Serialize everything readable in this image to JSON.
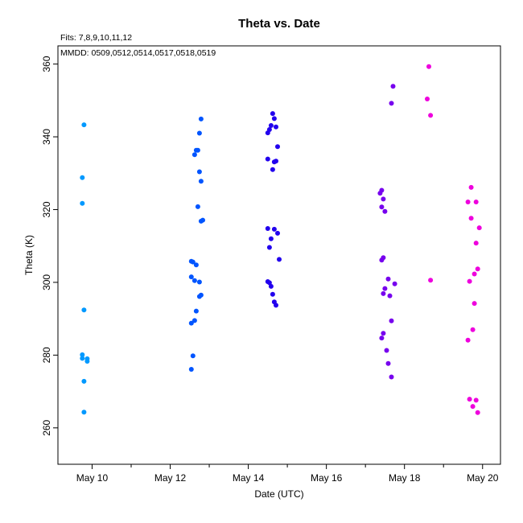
{
  "chart_data": {
    "type": "scatter",
    "title": "Theta  vs. Date",
    "subtitle": "Fits: 7,8,9,10,11,12",
    "annotation": "MMDD: 0509,0512,0514,0517,0518,0519",
    "xlabel": "Date (UTC)",
    "ylabel": "Theta (K)",
    "xlim": [
      "2019-05-09 03:00",
      "2019-05-20 11:00"
    ],
    "ylim": [
      250,
      365
    ],
    "x_ticks": [
      "2019-05-10",
      "2019-05-12",
      "2019-05-14",
      "2019-05-16",
      "2019-05-18",
      "2019-05-20"
    ],
    "x_tick_labels": [
      "May 10",
      "May 12",
      "May 14",
      "May 16",
      "May 18",
      "May 20"
    ],
    "x_minor_ticks": [
      "2019-05-11",
      "2019-05-13",
      "2019-05-15",
      "2019-05-17",
      "2019-05-19"
    ],
    "y_ticks": [
      260,
      280,
      300,
      320,
      340,
      360
    ],
    "grid": false,
    "legend": "none",
    "series": [
      {
        "color": "#0099ff",
        "points": [
          [
            "2019-05-09 19:00",
            343.3
          ],
          [
            "2019-05-09 18:00",
            328.8
          ],
          [
            "2019-05-09 18:00",
            321.7
          ],
          [
            "2019-05-09 19:00",
            292.4
          ],
          [
            "2019-05-09 18:00",
            280.1
          ],
          [
            "2019-05-09 18:00",
            279.1
          ],
          [
            "2019-05-09 21:00",
            279.0
          ],
          [
            "2019-05-09 21:00",
            278.3
          ],
          [
            "2019-05-09 19:00",
            272.8
          ],
          [
            "2019-05-09 19:00",
            264.3
          ]
        ]
      },
      {
        "color": "#0055ff",
        "points": [
          [
            "2019-05-12 19:00",
            344.9
          ],
          [
            "2019-05-12 18:00",
            341.0
          ],
          [
            "2019-05-12 17:00",
            336.3
          ],
          [
            "2019-05-12 16:00",
            336.3
          ],
          [
            "2019-05-12 15:00",
            335.1
          ],
          [
            "2019-05-12 18:00",
            330.4
          ],
          [
            "2019-05-12 19:00",
            327.8
          ],
          [
            "2019-05-12 17:00",
            320.8
          ],
          [
            "2019-05-12 20:00",
            317.1
          ],
          [
            "2019-05-12 19:00",
            316.8
          ],
          [
            "2019-05-12 13:00",
            305.8
          ],
          [
            "2019-05-12 14:00",
            305.6
          ],
          [
            "2019-05-12 16:00",
            304.8
          ],
          [
            "2019-05-12 13:00",
            301.5
          ],
          [
            "2019-05-12 15:00",
            300.5
          ],
          [
            "2019-05-12 18:00",
            300.1
          ],
          [
            "2019-05-12 19:00",
            296.5
          ],
          [
            "2019-05-12 18:00",
            296.1
          ],
          [
            "2019-05-12 16:00",
            292.1
          ],
          [
            "2019-05-12 15:00",
            289.5
          ],
          [
            "2019-05-12 13:00",
            288.8
          ],
          [
            "2019-05-12 14:00",
            279.8
          ],
          [
            "2019-05-12 13:00",
            276.1
          ]
        ]
      },
      {
        "color": "#2200ee",
        "points": [
          [
            "2019-05-14 15:00",
            346.4
          ],
          [
            "2019-05-14 16:00",
            345.0
          ],
          [
            "2019-05-14 14:00",
            343.1
          ],
          [
            "2019-05-14 17:00",
            342.7
          ],
          [
            "2019-05-14 13:00",
            342.0
          ],
          [
            "2019-05-14 12:00",
            341.1
          ],
          [
            "2019-05-14 18:00",
            337.3
          ],
          [
            "2019-05-14 12:00",
            333.9
          ],
          [
            "2019-05-14 17:00",
            333.3
          ],
          [
            "2019-05-14 16:00",
            333.1
          ],
          [
            "2019-05-14 15:00",
            331.0
          ],
          [
            "2019-05-14 12:00",
            314.8
          ],
          [
            "2019-05-14 16:00",
            314.6
          ],
          [
            "2019-05-14 18:00",
            313.5
          ],
          [
            "2019-05-14 14:00",
            312.0
          ],
          [
            "2019-05-14 13:00",
            309.6
          ],
          [
            "2019-05-14 19:00",
            306.3
          ],
          [
            "2019-05-14 12:00",
            300.2
          ],
          [
            "2019-05-14 13:00",
            299.9
          ],
          [
            "2019-05-14 14:00",
            298.9
          ],
          [
            "2019-05-14 15:00",
            296.7
          ],
          [
            "2019-05-14 16:00",
            294.6
          ],
          [
            "2019-05-14 17:00",
            293.7
          ]
        ]
      },
      {
        "color": "#7700ee",
        "points": [
          [
            "2019-05-17 17:00",
            353.9
          ],
          [
            "2019-05-17 16:00",
            349.2
          ],
          [
            "2019-05-17 10:00",
            325.3
          ],
          [
            "2019-05-17 09:00",
            324.5
          ],
          [
            "2019-05-17 11:00",
            322.9
          ],
          [
            "2019-05-17 10:00",
            320.7
          ],
          [
            "2019-05-17 12:00",
            319.5
          ],
          [
            "2019-05-17 11:00",
            306.8
          ],
          [
            "2019-05-17 10:00",
            306.1
          ],
          [
            "2019-05-17 14:00",
            300.9
          ],
          [
            "2019-05-17 18:00",
            299.6
          ],
          [
            "2019-05-17 12:00",
            298.3
          ],
          [
            "2019-05-17 11:00",
            296.9
          ],
          [
            "2019-05-17 15:00",
            296.3
          ],
          [
            "2019-05-17 16:00",
            289.4
          ],
          [
            "2019-05-17 11:00",
            286.0
          ],
          [
            "2019-05-17 10:00",
            284.7
          ],
          [
            "2019-05-17 13:00",
            281.3
          ],
          [
            "2019-05-17 14:00",
            277.7
          ],
          [
            "2019-05-17 16:00",
            274.0
          ]
        ]
      },
      {
        "color": "#ee00dd",
        "points": [
          [
            "2019-05-18 15:00",
            359.3
          ],
          [
            "2019-05-18 14:00",
            350.4
          ],
          [
            "2019-05-18 16:00",
            345.9
          ],
          [
            "2019-05-18 16:00",
            300.6
          ],
          [
            "2019-05-19 17:00",
            326.1
          ],
          [
            "2019-05-19 15:00",
            322.1
          ],
          [
            "2019-05-19 20:00",
            322.1
          ],
          [
            "2019-05-19 17:00",
            317.6
          ],
          [
            "2019-05-19 22:00",
            315.0
          ],
          [
            "2019-05-19 20:00",
            310.8
          ],
          [
            "2019-05-19 21:00",
            303.7
          ],
          [
            "2019-05-19 19:00",
            302.3
          ],
          [
            "2019-05-19 16:00",
            300.3
          ],
          [
            "2019-05-19 19:00",
            294.2
          ],
          [
            "2019-05-19 18:00",
            287.0
          ],
          [
            "2019-05-19 15:00",
            284.1
          ],
          [
            "2019-05-19 16:00",
            267.9
          ],
          [
            "2019-05-19 20:00",
            267.6
          ],
          [
            "2019-05-19 18:00",
            265.9
          ],
          [
            "2019-05-19 21:00",
            264.2
          ]
        ]
      }
    ]
  }
}
